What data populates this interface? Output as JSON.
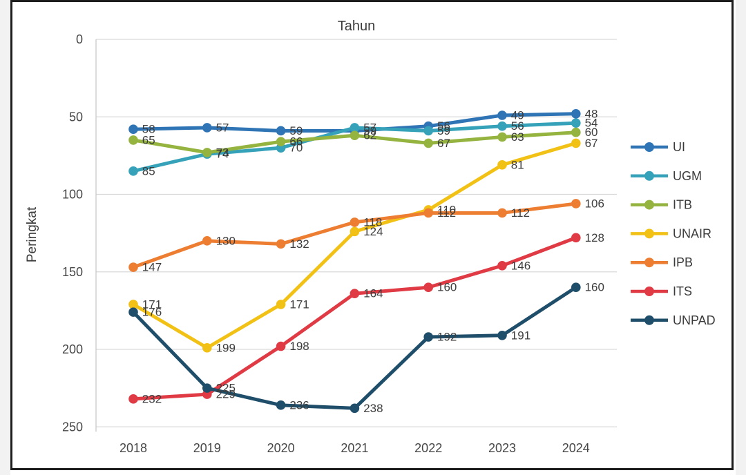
{
  "chart_data": {
    "type": "line",
    "title": "Tahun",
    "xlabel": "",
    "ylabel": "Peringkat",
    "x_categories": [
      "2018",
      "2019",
      "2020",
      "2021",
      "2022",
      "2023",
      "2024"
    ],
    "y_ticks": [
      0,
      50,
      100,
      150,
      200,
      250
    ],
    "ylim": [
      0,
      250
    ],
    "y_axis_inverted": true,
    "grid": true,
    "legend_position": "right",
    "marker_style": "circle",
    "data_labels_shown": true,
    "series": [
      {
        "name": "UI",
        "color": "#2f75b5",
        "values": [
          58,
          57,
          59,
          59,
          56,
          49,
          48
        ]
      },
      {
        "name": "UGM",
        "color": "#35a2b9",
        "values": [
          85,
          74,
          70,
          57,
          59,
          56,
          54
        ]
      },
      {
        "name": "ITB",
        "color": "#94b33f",
        "values": [
          65,
          73,
          66,
          62,
          67,
          63,
          60
        ]
      },
      {
        "name": "UNAIR",
        "color": "#f2c115",
        "values": [
          171,
          199,
          171,
          124,
          110,
          81,
          67
        ]
      },
      {
        "name": "IPB",
        "color": "#ed7d31",
        "values": [
          147,
          130,
          132,
          118,
          112,
          112,
          106
        ]
      },
      {
        "name": "ITS",
        "color": "#e03a45",
        "values": [
          232,
          229,
          198,
          164,
          160,
          146,
          128
        ]
      },
      {
        "name": "UNPAD",
        "color": "#1f4e6a",
        "values": [
          176,
          225,
          236,
          238,
          192,
          191,
          160
        ]
      }
    ],
    "colors": {
      "gridline": "#d9d9d9",
      "axis_line": "#c9c9c9",
      "text": "#404040",
      "frame_border": "#1d1d1d"
    }
  }
}
